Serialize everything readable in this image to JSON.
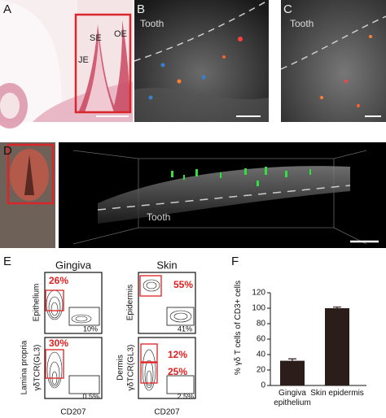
{
  "panel_labels": [
    "A",
    "B",
    "C",
    "D",
    "E",
    "F"
  ],
  "panel_a": {
    "labels": [
      "SE",
      "OE",
      "JE"
    ]
  },
  "panel_b": {
    "label": "Tooth"
  },
  "panel_c": {
    "label": "Tooth"
  },
  "panel_d": {
    "label": "Tooth"
  },
  "panel_e": {
    "columns": [
      "Gingiva",
      "Skin"
    ],
    "gingiva_rows": [
      "Epithelium",
      "Lamina propria"
    ],
    "skin_rows": [
      "Epidermis",
      "Dermis"
    ],
    "y_axis": "γδTCR(GL3)",
    "x_axis": "CD207",
    "plots": [
      [
        "26%",
        "10%"
      ],
      [
        "55%",
        "41%"
      ],
      [
        "30%",
        "0.5%"
      ],
      [
        "12%",
        "25%",
        "2.5%"
      ]
    ]
  },
  "chart_data": {
    "type": "bar",
    "y_label": "% γδ T cells of CD3+ cells",
    "categories": [
      "Gingiva epithelium",
      "Skin epidermis"
    ],
    "values": [
      32,
      100
    ],
    "errors": [
      2.5,
      1.5
    ],
    "color": "#2b1d1a",
    "ylim": [
      0,
      120
    ],
    "yticks": [
      0,
      20,
      40,
      60,
      80,
      100,
      120
    ]
  }
}
